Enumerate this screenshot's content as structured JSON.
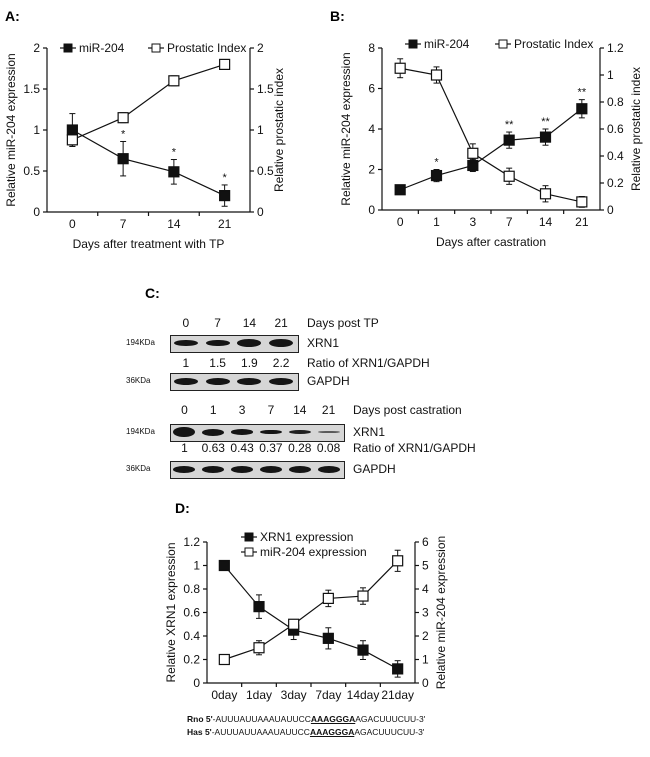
{
  "panels": {
    "a": "A:",
    "b": "B:",
    "c": "C:",
    "d": "D:"
  },
  "chart_data": [
    {
      "type": "line",
      "title": "",
      "xlabel": "Days after treatment with TP",
      "ylabel": "Relative miR-204 expression",
      "y2label": "Relative prostatic index",
      "categories": [
        "0",
        "7",
        "14",
        "21"
      ],
      "ylim": [
        0,
        2
      ],
      "yticks": [
        "0",
        "0.5",
        "1",
        "1.5",
        "2"
      ],
      "y2lim": [
        0,
        2
      ],
      "y2ticks": [
        "0",
        "0.5",
        "1",
        "1.5",
        "2"
      ],
      "legend": "top",
      "series": [
        {
          "name": "miR-204",
          "axis": "left",
          "marker": "filled-square",
          "values": [
            1,
            0.65,
            0.49,
            0.2
          ],
          "errors": [
            0.2,
            0.21,
            0.15,
            0.13
          ],
          "significance": [
            "",
            "*",
            "*",
            "*"
          ]
        },
        {
          "name": "Prostatic Index",
          "axis": "right",
          "marker": "open-square",
          "values": [
            0.88,
            1.15,
            1.6,
            1.8
          ],
          "errors": [
            0.08,
            0.06,
            0.06,
            0.05
          ],
          "significance": [
            "",
            "",
            "",
            ""
          ]
        }
      ]
    },
    {
      "type": "line",
      "title": "",
      "xlabel": "Days after castration",
      "ylabel": "Relative miR-204 expression",
      "y2label": "Relative prostatic index",
      "categories": [
        "0",
        "1",
        "3",
        "7",
        "14",
        "21"
      ],
      "ylim": [
        0,
        8
      ],
      "yticks": [
        "0",
        "2",
        "4",
        "6",
        "8"
      ],
      "y2lim": [
        0,
        1.2
      ],
      "y2ticks": [
        "0",
        "0.2",
        "0.4",
        "0.6",
        "0.8",
        "1",
        "1.2"
      ],
      "legend": "top",
      "series": [
        {
          "name": "miR-204",
          "axis": "left",
          "marker": "filled-square",
          "values": [
            1,
            1.7,
            2.2,
            3.45,
            3.6,
            5
          ],
          "errors": [
            0.15,
            0.3,
            0.3,
            0.4,
            0.4,
            0.45
          ],
          "significance": [
            "",
            "*",
            "*",
            "**",
            "**",
            "**"
          ]
        },
        {
          "name": "Prostatic Index",
          "axis": "right",
          "marker": "open-square",
          "values": [
            1.05,
            1.0,
            0.42,
            0.25,
            0.12,
            0.06
          ],
          "errors": [
            0.07,
            0.06,
            0.07,
            0.06,
            0.06,
            0.04
          ],
          "significance": [
            "",
            "",
            "",
            "",
            "",
            ""
          ]
        }
      ]
    },
    {
      "type": "line",
      "title": "",
      "xlabel": "",
      "ylabel": "Relative XRN1 expression",
      "y2label": "Relative miR-204 expression",
      "categories": [
        "0day",
        "1day",
        "3day",
        "7day",
        "14day",
        "21day"
      ],
      "ylim": [
        0,
        1.2
      ],
      "yticks": [
        "0",
        "0.2",
        "0.4",
        "0.6",
        "0.8",
        "1",
        "1.2"
      ],
      "y2lim": [
        0,
        6
      ],
      "y2ticks": [
        "0",
        "1",
        "2",
        "3",
        "4",
        "5",
        "6"
      ],
      "legend": "top",
      "series": [
        {
          "name": "XRN1 expression",
          "axis": "left",
          "marker": "filled-square",
          "values": [
            1,
            0.65,
            0.45,
            0.38,
            0.28,
            0.12
          ],
          "errors": [
            0,
            0.1,
            0.08,
            0.09,
            0.08,
            0.07
          ],
          "significance": [
            "",
            "",
            "",
            "",
            "",
            ""
          ]
        },
        {
          "name": "miR-204 expression",
          "axis": "right",
          "marker": "open-square",
          "values": [
            1,
            1.5,
            2.5,
            3.6,
            3.7,
            5.2
          ],
          "errors": [
            0,
            0.3,
            0.2,
            0.35,
            0.35,
            0.45
          ],
          "significance": [
            "",
            "",
            "",
            "",
            "",
            ""
          ]
        }
      ]
    }
  ],
  "blot": {
    "tp": {
      "days": [
        "0",
        "7",
        "14",
        "21"
      ],
      "days_label": "Days post TP",
      "xrn1": "XRN1",
      "ratio_label": "Ratio of XRN1/GAPDH",
      "ratios": [
        "1",
        "1.5",
        "1.9",
        "2.2"
      ],
      "gapdh": "GAPDH",
      "kda_xrn1": "194KDa",
      "kda_gapdh": "36KDa"
    },
    "cast": {
      "days": [
        "0",
        "1",
        "3",
        "7",
        "14",
        "21"
      ],
      "days_label": "Days post castration",
      "xrn1": "XRN1",
      "ratio_label": "Ratio of XRN1/GAPDH",
      "ratios": [
        "1",
        "0.63",
        "0.43",
        "0.37",
        "0.28",
        "0.08"
      ],
      "gapdh": "GAPDH",
      "kda_xrn1": "194KDa",
      "kda_gapdh": "36KDa"
    }
  },
  "sequences": [
    {
      "species": "Rno 5'",
      "pre": "-AUUUAUUAAAUAUUCC",
      "seed": "AAAGGGA",
      "post": "AGACUUUCUU-3'"
    },
    {
      "species": "Has 5'",
      "pre": "-AUUUAUUAAAUAUUCC",
      "seed": "AAAGGGA",
      "post": "AGACUUUCUU-3'"
    }
  ]
}
